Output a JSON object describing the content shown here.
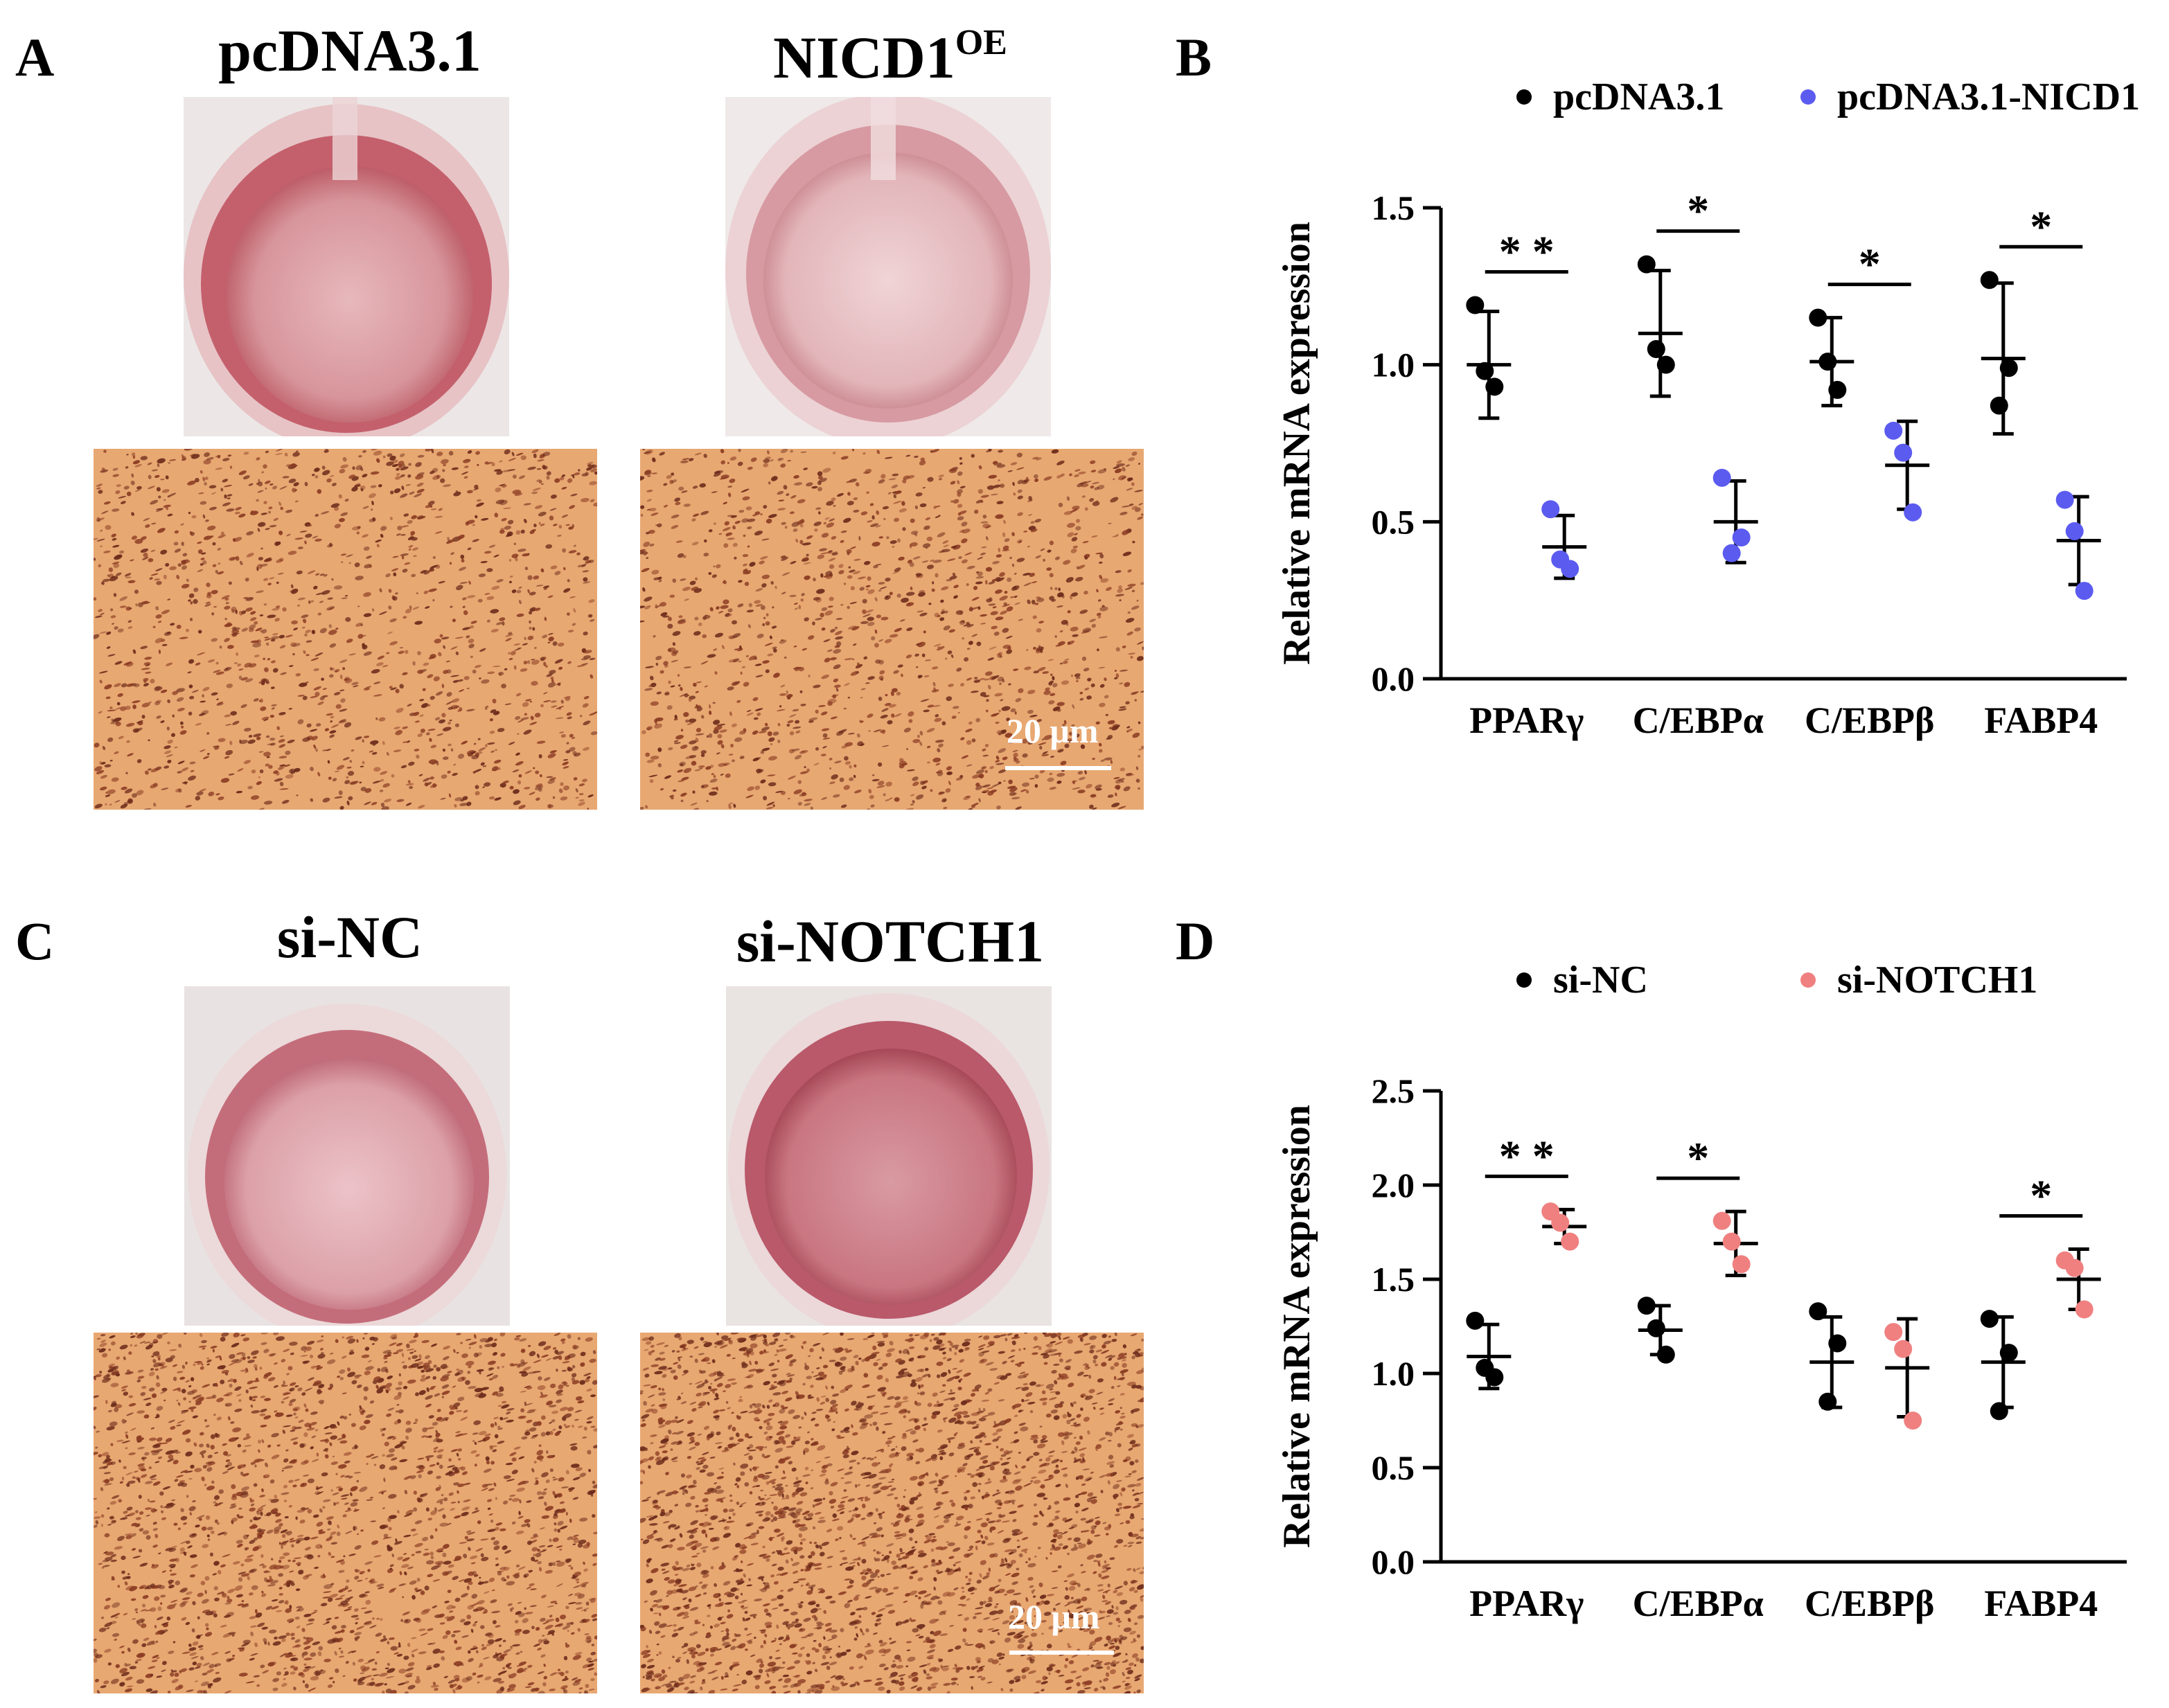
{
  "panels": {
    "A": {
      "letter": "A",
      "left_title": "pcDNA3.1",
      "right_title_main": "NICD1",
      "right_title_sup": "OE",
      "scale_bar": "20 μm"
    },
    "B": {
      "letter": "B"
    },
    "C": {
      "letter": "C",
      "left_title": "si-NC",
      "right_title": "si-NOTCH1",
      "scale_bar": "20 μm"
    },
    "D": {
      "letter": "D"
    }
  },
  "colors": {
    "control": "#000000",
    "nicd1": "#5b5bf0",
    "si_notch1": "#f08080",
    "well_pink": "#d98a92",
    "micro_bg": "#e8a872",
    "micro_dot": "#6b2a1a"
  },
  "chart_data": [
    {
      "panel": "B",
      "type": "scatter",
      "categories": [
        "PPARγ",
        "C/EBPα",
        "C/EBPβ",
        "FABP4"
      ],
      "ylabel": "Relative mRNA expression",
      "ylim": [
        0,
        1.5
      ],
      "yticks": [
        "0.0",
        "0.5",
        "1.0",
        "1.5"
      ],
      "legend_position": "top",
      "series": [
        {
          "name": "pcDNA3.1",
          "color": "#000000",
          "points": [
            [
              1.19,
              0.93,
              0.98
            ],
            [
              1.32,
              1.0,
              1.05
            ],
            [
              1.15,
              0.92,
              1.01
            ],
            [
              1.27,
              0.99,
              0.87
            ]
          ],
          "mean": [
            1.0,
            1.1,
            1.01,
            1.02
          ],
          "sd": [
            0.17,
            0.2,
            0.14,
            0.24
          ]
        },
        {
          "name": "pcDNA3.1-NICD1",
          "color": "#5b5bf0",
          "points": [
            [
              0.54,
              0.35,
              0.38
            ],
            [
              0.64,
              0.45,
              0.4
            ],
            [
              0.79,
              0.53,
              0.72
            ],
            [
              0.57,
              0.28,
              0.47
            ]
          ],
          "mean": [
            0.42,
            0.5,
            0.68,
            0.44
          ],
          "sd": [
            0.1,
            0.13,
            0.14,
            0.14
          ]
        }
      ],
      "significance": [
        "**",
        "*",
        "*",
        "*"
      ]
    },
    {
      "panel": "D",
      "type": "scatter",
      "categories": [
        "PPARγ",
        "C/EBPα",
        "C/EBPβ",
        "FABP4"
      ],
      "ylabel": "Relative mRNA expression",
      "ylim": [
        0,
        2.5
      ],
      "yticks": [
        "0.0",
        "0.5",
        "1.0",
        "1.5",
        "2.0",
        "2.5"
      ],
      "legend_position": "top",
      "series": [
        {
          "name": "si-NC",
          "color": "#000000",
          "points": [
            [
              1.28,
              0.98,
              1.03
            ],
            [
              1.36,
              1.1,
              1.24
            ],
            [
              1.33,
              1.16,
              0.85
            ],
            [
              1.29,
              1.11,
              0.8
            ]
          ],
          "mean": [
            1.09,
            1.23,
            1.06,
            1.06
          ],
          "sd": [
            0.17,
            0.13,
            0.24,
            0.24
          ]
        },
        {
          "name": "si-NOTCH1",
          "color": "#f08080",
          "points": [
            [
              1.86,
              1.7,
              1.8
            ],
            [
              1.81,
              1.58,
              1.7
            ],
            [
              1.22,
              0.75,
              1.13
            ],
            [
              1.6,
              1.34,
              1.56
            ]
          ],
          "mean": [
            1.78,
            1.69,
            1.03,
            1.5
          ],
          "sd": [
            0.09,
            0.17,
            0.26,
            0.16
          ]
        }
      ],
      "significance": [
        "**",
        "*",
        "",
        "*"
      ]
    }
  ]
}
